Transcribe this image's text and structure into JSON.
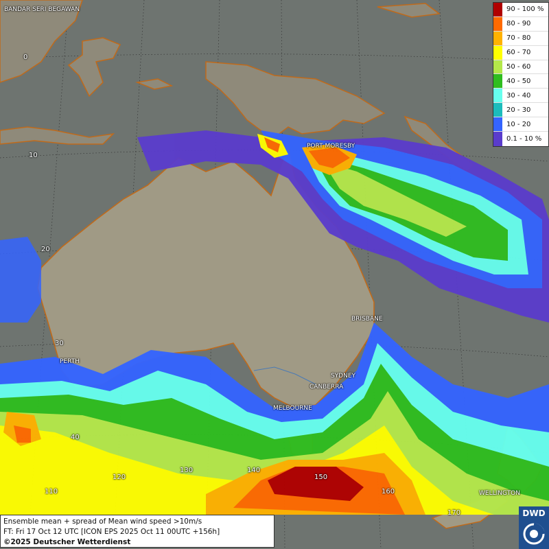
{
  "legend": {
    "items": [
      {
        "label": "90 - 100 %",
        "color": "#b00000"
      },
      {
        "label": "80 - 90",
        "color": "#ff6a00"
      },
      {
        "label": "70 - 80",
        "color": "#ffb200"
      },
      {
        "label": "60 - 70",
        "color": "#ffff00"
      },
      {
        "label": "50 - 60",
        "color": "#b4e84a"
      },
      {
        "label": "40 - 50",
        "color": "#2fbd1f"
      },
      {
        "label": "30 - 40",
        "color": "#66ffee"
      },
      {
        "label": "20 - 30",
        "color": "#1cbcbc"
      },
      {
        "label": "10 - 20",
        "color": "#3464ff"
      },
      {
        "label": "0.1 - 10 %",
        "color": "#5a3ccc"
      }
    ]
  },
  "cities": {
    "bandar": "BANDAR SERI BEGAWAN",
    "port_moresby": "PORT MORESBY",
    "brisbane": "BRISBANE",
    "perth": "PERTH",
    "sydney": "SYDNEY",
    "canberra": "CANBERRA",
    "melbourne": "MELBOURNE",
    "wellington": "WELLINGTON"
  },
  "gridlabels": {
    "lat0": "0",
    "lat10": "10",
    "lat20": "20",
    "lat30": "30",
    "lat40": "40",
    "lon110": "110",
    "lon120": "120",
    "lon130": "130",
    "lon140": "140",
    "lon150": "150",
    "lon160": "160",
    "lon170": "170"
  },
  "info": {
    "line1": "Ensemble mean + spread of Mean wind speed >10m/s",
    "line2": "FT: Fri 17 Oct 12 UTC [ICON EPS 2025 Oct 11 00UTC +156h]",
    "copyright": "©2025 Deutscher Wetterdienst"
  },
  "logo": {
    "text": "DWD"
  }
}
